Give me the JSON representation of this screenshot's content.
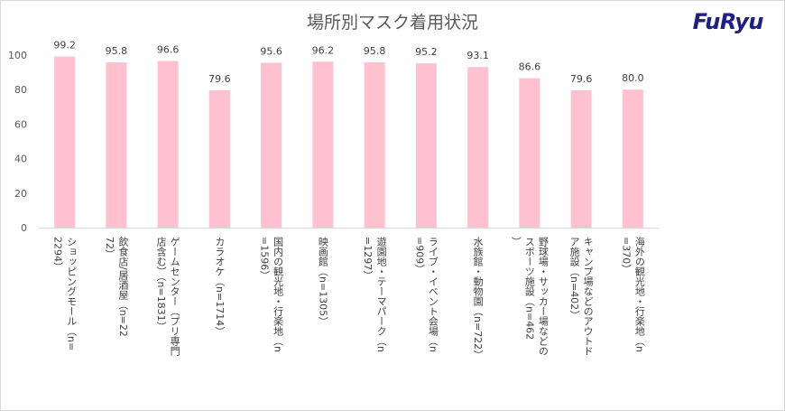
{
  "title": "場所別マスク着用状況",
  "brand": "FuRyu",
  "colors": {
    "bar": "#ffc1cf",
    "axis": "#d9d9d9",
    "text": "#595959"
  },
  "chart_data": {
    "type": "bar",
    "title": "場所別マスク着用状況",
    "xlabel": "",
    "ylabel": "",
    "ylim": [
      0,
      100
    ],
    "yticks": [
      0,
      20,
      40,
      60,
      80,
      100
    ],
    "grid": false,
    "categories": [
      "ショッピングモール（n=2294）",
      "飲食店/居酒屋（n=2272）",
      "ゲームセンター（プリ専門店含む）（n=1831）",
      "カラオケ（n=1714）",
      "国内の観光地・行楽地（n=1596）",
      "映画館（n=1305）",
      "遊園地・テーマパーク（n=1297）",
      "ライブ・イベント会場（n=909）",
      "水族館・動物園（n=722）",
      "野球場・サッカー場などのスポーツ施設（n=462）",
      "キャンプ場などのアウトドア施設（n=402）",
      "海外の観光地・行楽地（n=370）"
    ],
    "values": [
      99.2,
      95.8,
      96.6,
      79.6,
      95.6,
      96.2,
      95.8,
      95.2,
      93.1,
      86.6,
      79.6,
      80.0
    ],
    "data_labels": [
      "99.2",
      "95.8",
      "96.6",
      "79.6",
      "95.6",
      "96.2",
      "95.8",
      "95.2",
      "93.1",
      "86.6",
      "79.6",
      "80.0"
    ]
  }
}
